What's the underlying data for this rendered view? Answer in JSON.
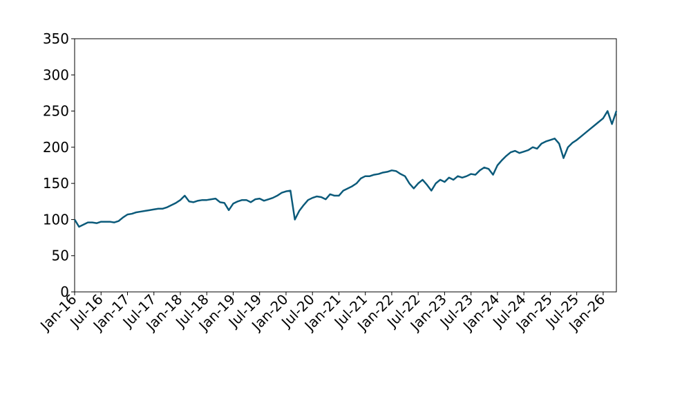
{
  "chart_data": {
    "type": "line",
    "x": [
      "2016-01",
      "2016-02",
      "2016-03",
      "2016-04",
      "2016-05",
      "2016-06",
      "2016-07",
      "2016-08",
      "2016-09",
      "2016-10",
      "2016-11",
      "2016-12",
      "2017-01",
      "2017-02",
      "2017-03",
      "2017-04",
      "2017-05",
      "2017-06",
      "2017-07",
      "2017-08",
      "2017-09",
      "2017-10",
      "2017-11",
      "2017-12",
      "2018-01",
      "2018-02",
      "2018-03",
      "2018-04",
      "2018-05",
      "2018-06",
      "2018-07",
      "2018-08",
      "2018-09",
      "2018-10",
      "2018-11",
      "2018-12",
      "2019-01",
      "2019-02",
      "2019-03",
      "2019-04",
      "2019-05",
      "2019-06",
      "2019-07",
      "2019-08",
      "2019-09",
      "2019-10",
      "2019-11",
      "2019-12",
      "2020-01",
      "2020-02",
      "2020-03",
      "2020-04",
      "2020-05",
      "2020-06",
      "2020-07",
      "2020-08",
      "2020-09",
      "2020-10",
      "2020-11",
      "2020-12",
      "2021-01",
      "2021-02",
      "2021-03",
      "2021-04",
      "2021-05",
      "2021-06",
      "2021-07",
      "2021-08",
      "2021-09",
      "2021-10",
      "2021-11",
      "2021-12",
      "2022-01",
      "2022-02",
      "2022-03",
      "2022-04",
      "2022-05",
      "2022-06",
      "2022-07",
      "2022-08",
      "2022-09",
      "2022-10",
      "2022-11",
      "2022-12",
      "2023-01",
      "2023-02",
      "2023-03",
      "2023-04",
      "2023-05",
      "2023-06",
      "2023-07",
      "2023-08",
      "2023-09",
      "2023-10",
      "2023-11",
      "2023-12",
      "2024-01",
      "2024-02",
      "2024-03",
      "2024-04",
      "2024-05",
      "2024-06",
      "2024-07",
      "2024-08",
      "2024-09",
      "2024-10",
      "2024-11",
      "2024-12",
      "2025-01",
      "2025-02",
      "2025-03",
      "2025-04",
      "2025-05",
      "2025-06",
      "2025-07",
      "2025-08",
      "2025-09",
      "2025-10",
      "2025-11",
      "2025-12",
      "2026-01",
      "2026-02",
      "2026-03",
      "2026-04"
    ],
    "series": [
      {
        "color": "#0b5a7a",
        "values": [
          100,
          90,
          93,
          96,
          96,
          95,
          97,
          97,
          97,
          96,
          98,
          103,
          107,
          108,
          110,
          111,
          112,
          113,
          114,
          115,
          115,
          117,
          120,
          123,
          127,
          133,
          125,
          124,
          126,
          127,
          127,
          128,
          129,
          124,
          123,
          113,
          122,
          125,
          127,
          127,
          124,
          128,
          129,
          126,
          128,
          130,
          133,
          137,
          139,
          140,
          100,
          112,
          120,
          127,
          130,
          132,
          131,
          128,
          135,
          133,
          133,
          140,
          143,
          146,
          150,
          157,
          160,
          160,
          162,
          163,
          165,
          166,
          168,
          167,
          163,
          160,
          150,
          143,
          150,
          155,
          148,
          140,
          150,
          155,
          152,
          158,
          155,
          160,
          158,
          160,
          163,
          162,
          168,
          172,
          170,
          162,
          175,
          182,
          188,
          193,
          195,
          192,
          194,
          196,
          200,
          198,
          205,
          208,
          210,
          212,
          205,
          185,
          200,
          206,
          210,
          215,
          220,
          225,
          230,
          235,
          240,
          250,
          232,
          250
        ]
      }
    ],
    "xlim": [
      "2016-01",
      "2026-04"
    ],
    "xticks": [
      {
        "value": "2016-01",
        "label": "Jan-16"
      },
      {
        "value": "2016-07",
        "label": "Jul-16"
      },
      {
        "value": "2017-01",
        "label": "Jan-17"
      },
      {
        "value": "2017-07",
        "label": "Jul-17"
      },
      {
        "value": "2018-01",
        "label": "Jan-18"
      },
      {
        "value": "2018-07",
        "label": "Jul-18"
      },
      {
        "value": "2019-01",
        "label": "Jan-19"
      },
      {
        "value": "2019-07",
        "label": "Jul-19"
      },
      {
        "value": "2020-01",
        "label": "Jan-20"
      },
      {
        "value": "2020-07",
        "label": "Jul-20"
      },
      {
        "value": "2021-01",
        "label": "Jan-21"
      },
      {
        "value": "2021-07",
        "label": "Jul-21"
      },
      {
        "value": "2022-01",
        "label": "Jan-22"
      },
      {
        "value": "2022-07",
        "label": "Jul-22"
      },
      {
        "value": "2023-01",
        "label": "Jan-23"
      },
      {
        "value": "2023-07",
        "label": "Jul-23"
      },
      {
        "value": "2024-01",
        "label": "Jan-24"
      },
      {
        "value": "2024-07",
        "label": "Jul-24"
      },
      {
        "value": "2025-01",
        "label": "Jan-25"
      },
      {
        "value": "2025-07",
        "label": "Jul-25"
      },
      {
        "value": "2026-01",
        "label": "Jan-26"
      }
    ],
    "ylim": [
      0,
      350
    ],
    "yticks": [
      0,
      50,
      100,
      150,
      200,
      250,
      300,
      350
    ],
    "grid": false
  }
}
